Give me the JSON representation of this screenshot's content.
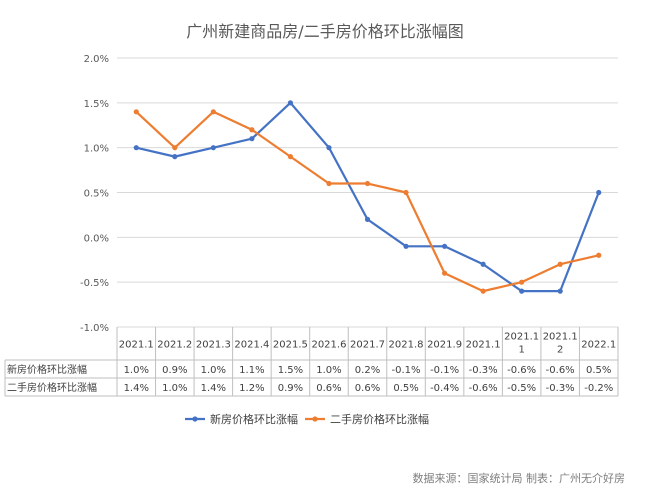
{
  "chart_data": {
    "type": "line",
    "title": "广州新建商品房/二手房价格环比涨幅图",
    "categories": [
      "2021.1",
      "2021.2",
      "2021.3",
      "2021.4",
      "2021.5",
      "2021.6",
      "2021.7",
      "2021.8",
      "2021.9",
      "2021.1",
      "2021.11",
      "2021.12",
      "2022.1"
    ],
    "category_lines": [
      [
        "2021.1"
      ],
      [
        "2021.2"
      ],
      [
        "2021.3"
      ],
      [
        "2021.4"
      ],
      [
        "2021.5"
      ],
      [
        "2021.6"
      ],
      [
        "2021.7"
      ],
      [
        "2021.8"
      ],
      [
        "2021.9"
      ],
      [
        "2021.1"
      ],
      [
        "2021.1",
        "1"
      ],
      [
        "2021.1",
        "2"
      ],
      [
        "2022.1"
      ]
    ],
    "ylim": [
      -1.0,
      2.0
    ],
    "yticks": [
      2.0,
      1.5,
      1.0,
      0.5,
      0.0,
      -0.5,
      -1.0
    ],
    "ytick_labels": [
      "2.0%",
      "1.5%",
      "1.0%",
      "0.5%",
      "0.0%",
      "-0.5%",
      "-1.0%"
    ],
    "grid": true,
    "legend_position": "bottom",
    "series": [
      {
        "name": "新房价格环比涨幅",
        "color": "#4472c4",
        "values": [
          1.0,
          0.9,
          1.0,
          1.1,
          1.5,
          1.0,
          0.2,
          -0.1,
          -0.1,
          -0.3,
          -0.6,
          -0.6,
          0.5
        ],
        "labels": [
          "1.0%",
          "0.9%",
          "1.0%",
          "1.1%",
          "1.5%",
          "1.0%",
          "0.2%",
          "-0.1%",
          "-0.1%",
          "-0.3%",
          "-0.6%",
          "-0.6%",
          "0.5%"
        ]
      },
      {
        "name": "二手房价格环比涨幅",
        "color": "#ed7d31",
        "values": [
          1.4,
          1.0,
          1.4,
          1.2,
          0.9,
          0.6,
          0.6,
          0.5,
          -0.4,
          -0.6,
          -0.5,
          -0.3,
          -0.2
        ],
        "labels": [
          "1.4%",
          "1.0%",
          "1.4%",
          "1.2%",
          "0.9%",
          "0.6%",
          "0.6%",
          "0.5%",
          "-0.4%",
          "-0.6%",
          "-0.5%",
          "-0.3%",
          "-0.2%"
        ]
      }
    ]
  },
  "footer": {
    "source": "数据来源：国家统计局  制表：广州无介好房"
  }
}
